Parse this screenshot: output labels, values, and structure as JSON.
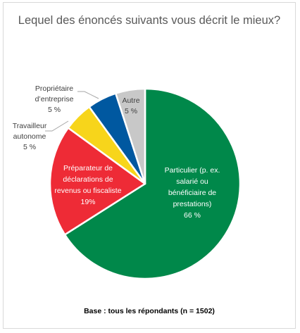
{
  "chart_data": {
    "type": "pie",
    "title": "Lequel des énoncés suivants vous décrit le mieux?",
    "note": "Base : tous les répondants (n = 1502)",
    "slices": [
      {
        "label": [
          "Particulier (p. ex.",
          "salarié ou",
          "bénéficiaire de",
          "prestations)"
        ],
        "value_label": "66 %",
        "value": 66,
        "color": "#00884a"
      },
      {
        "label": [
          "Préparateur de",
          "déclarations de",
          "revenus ou fiscaliste"
        ],
        "value_label": "19%",
        "value": 19,
        "color": "#ee2b36"
      },
      {
        "label": [
          "Travailleur",
          "autonome"
        ],
        "value_label": "5 %",
        "value": 5,
        "color": "#f7d51b"
      },
      {
        "label": [
          "Propriétaire",
          "d’entreprise"
        ],
        "value_label": "5 %",
        "value": 5,
        "color": "#0058a0"
      },
      {
        "label": [
          "Autre"
        ],
        "value_label": "5 %",
        "value": 5,
        "color": "#c8c8c8"
      }
    ]
  }
}
